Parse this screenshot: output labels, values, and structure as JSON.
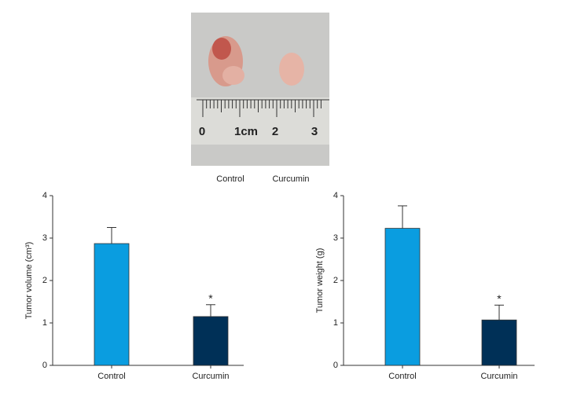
{
  "photo": {
    "ruler_labels": [
      "0",
      "1cm",
      "2",
      "3"
    ],
    "labels": [
      "Control",
      "Curcumin"
    ]
  },
  "chart_data": [
    {
      "type": "bar",
      "ylabel": "Tumor volume (cm³)",
      "categories": [
        "Control",
        "Curcumin"
      ],
      "values": [
        2.87,
        1.15
      ],
      "errors": [
        0.38,
        0.28
      ],
      "colors": [
        "#0a9de0",
        "#003057"
      ],
      "ylim": [
        0,
        4
      ],
      "yticks": [
        0,
        1,
        2,
        3,
        4
      ],
      "annotations": [
        {
          "text": "*",
          "x": "Curcumin"
        }
      ]
    },
    {
      "type": "bar",
      "ylabel": "Tumor weight (g)",
      "categories": [
        "Control",
        "Curcumin"
      ],
      "values": [
        3.23,
        1.07
      ],
      "errors": [
        0.53,
        0.35
      ],
      "colors": [
        "#0a9de0",
        "#003057"
      ],
      "ylim": [
        0,
        4
      ],
      "yticks": [
        0,
        1,
        2,
        3,
        4
      ],
      "annotations": [
        {
          "text": "*",
          "x": "Curcumin"
        }
      ]
    }
  ]
}
